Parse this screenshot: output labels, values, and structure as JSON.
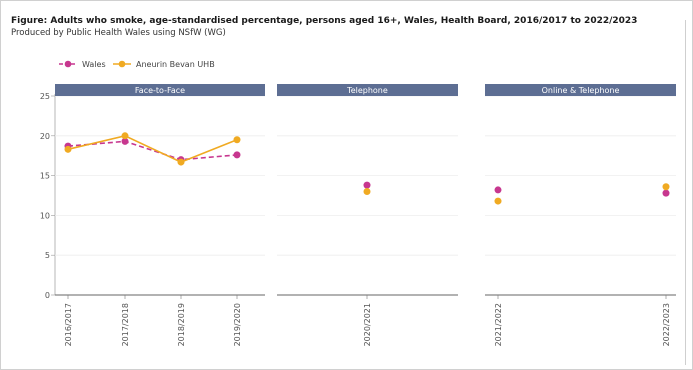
{
  "title": "Figure: Adults who smoke, age-standardised percentage, persons aged 16+, Wales, Health Board, 2016/2017 to 2022/2023",
  "subtitle": "Produced by Public Health Wales using NSfW (WG)",
  "colors": {
    "wales": "#c7378f",
    "abuhb": "#f0aa22",
    "panel_header": "#5d6e93",
    "grid": "#eeeeee"
  },
  "chart_data": {
    "type": "line",
    "ylim": [
      0,
      25
    ],
    "yticks": [
      0,
      5,
      10,
      15,
      20,
      25
    ],
    "grid": true,
    "legend_position": "top-left",
    "series_names": [
      "Wales",
      "Aneurin Bevan UHB"
    ],
    "panels": [
      {
        "label": "Face-to-Face",
        "categories": [
          "2016/2017",
          "2017/2018",
          "2018/2019",
          "2019/2020"
        ],
        "series": [
          {
            "name": "Wales",
            "values": [
              18.7,
              19.3,
              17.0,
              17.6
            ]
          },
          {
            "name": "Aneurin Bevan UHB",
            "values": [
              18.3,
              20.0,
              16.7,
              19.5
            ]
          }
        ]
      },
      {
        "label": "Telephone",
        "categories": [
          "2020/2021"
        ],
        "series": [
          {
            "name": "Wales",
            "values": [
              13.8
            ]
          },
          {
            "name": "Aneurin Bevan UHB",
            "values": [
              13.0
            ]
          }
        ]
      },
      {
        "label": "Online & Telephone",
        "categories": [
          "2021/2022",
          "2022/2023"
        ],
        "series": [
          {
            "name": "Wales",
            "values": [
              13.2,
              12.8
            ]
          },
          {
            "name": "Aneurin Bevan UHB",
            "values": [
              11.8,
              13.6
            ]
          }
        ]
      }
    ]
  }
}
